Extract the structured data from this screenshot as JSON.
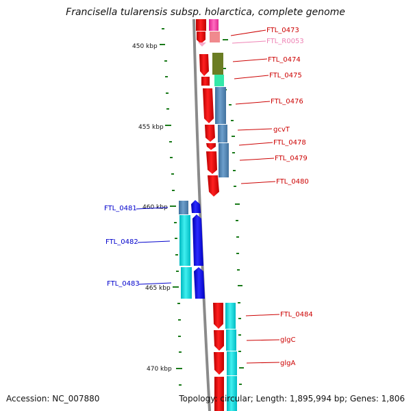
{
  "title": "Francisella tularensis subsp. holarctica, complete genome",
  "footer": {
    "accession": "Accession: NC_007880",
    "summary": "Topology: circular; Length: 1,895,994 bp; Genes: 1,806"
  },
  "colors": {
    "backbone": "#8a8a8a",
    "tick": "#1a7a1a",
    "label_red": "#cc0000",
    "label_pink": "#ee82b4",
    "label_blue": "#0000cc"
  },
  "scale_labels": [
    "450 kbp",
    "455 kbp",
    "460 kbp",
    "465 kbp",
    "470 kbp"
  ],
  "genes": [
    {
      "id": "FTL_0473",
      "color": "label_red"
    },
    {
      "id": "FTL_R0053",
      "color": "label_pink"
    },
    {
      "id": "FTL_0474",
      "color": "label_red"
    },
    {
      "id": "FTL_0475",
      "color": "label_red"
    },
    {
      "id": "FTL_0476",
      "color": "label_red"
    },
    {
      "id": "gcvT",
      "color": "label_red"
    },
    {
      "id": "FTL_0478",
      "color": "label_red"
    },
    {
      "id": "FTL_0479",
      "color": "label_red"
    },
    {
      "id": "FTL_0480",
      "color": "label_red"
    },
    {
      "id": "FTL_0481",
      "color": "label_blue"
    },
    {
      "id": "FTL_0482",
      "color": "label_blue"
    },
    {
      "id": "FTL_0483",
      "color": "label_blue"
    },
    {
      "id": "FTL_0484",
      "color": "label_red"
    },
    {
      "id": "glgC",
      "color": "label_red"
    },
    {
      "id": "glgA",
      "color": "label_red"
    }
  ]
}
